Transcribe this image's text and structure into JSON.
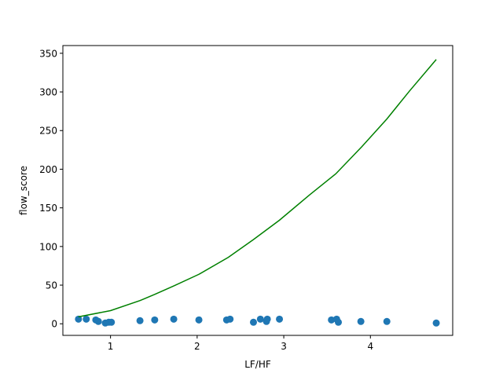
{
  "chart_data": {
    "type": "scatter",
    "xlabel": "LF/HF",
    "ylabel": "flow_score",
    "xlim": [
      0.45,
      4.95
    ],
    "ylim": [
      -15,
      360
    ],
    "xticks": [
      1,
      2,
      3,
      4
    ],
    "yticks": [
      0,
      50,
      100,
      150,
      200,
      250,
      300,
      350
    ],
    "grid": false,
    "legend": "none",
    "series": [
      {
        "kind": "scatter",
        "color": "#1f77b4",
        "x": [
          0.63,
          0.72,
          0.83,
          0.86,
          0.94,
          0.98,
          1.01,
          1.34,
          1.51,
          1.73,
          2.02,
          2.34,
          2.38,
          2.65,
          2.73,
          2.8,
          2.81,
          2.95,
          3.55,
          3.61,
          3.63,
          3.89,
          4.19,
          4.76
        ],
        "y": [
          6,
          6,
          5,
          3,
          1,
          2,
          2,
          4,
          5,
          6,
          5,
          5,
          6,
          2,
          6,
          3,
          6,
          6,
          5,
          6,
          2,
          3,
          3,
          1
        ]
      },
      {
        "kind": "line",
        "color": "#008000",
        "x": [
          0.63,
          1.0,
          1.34,
          1.51,
          1.73,
          2.02,
          2.36,
          2.65,
          2.95,
          3.3,
          3.6,
          3.9,
          4.19,
          4.45,
          4.76
        ],
        "y": [
          9,
          17,
          30,
          38,
          49,
          64,
          86,
          109,
          134,
          167,
          194,
          229,
          265,
          301,
          342
        ]
      }
    ]
  }
}
